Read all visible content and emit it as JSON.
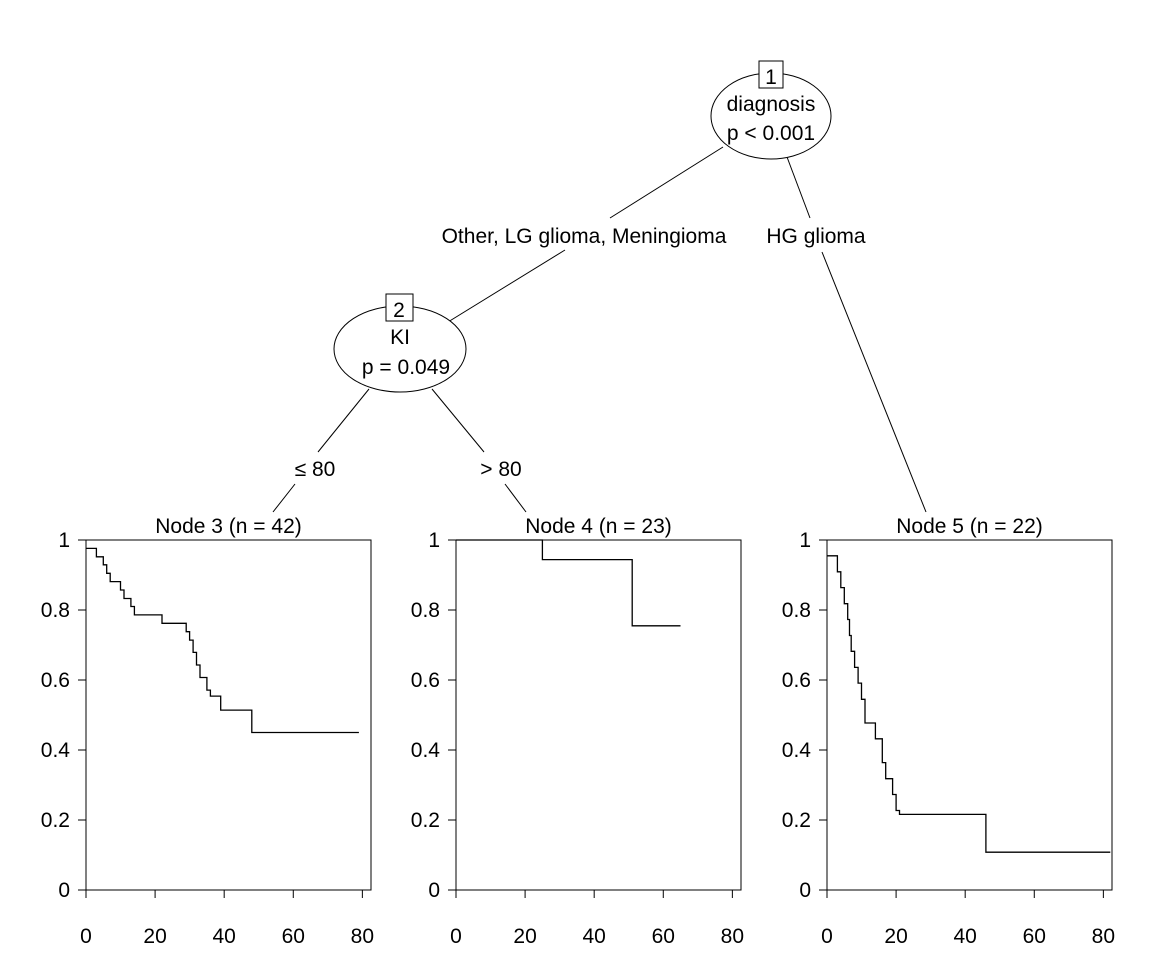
{
  "tree": {
    "inner_nodes": [
      {
        "id": "1",
        "variable": "diagnosis",
        "pvalue": "p < 0.001"
      },
      {
        "id": "2",
        "variable": "KI",
        "pvalue": "p = 0.049"
      }
    ],
    "edge_labels": {
      "left_of_1": "Other, LG glioma, Meningioma",
      "right_of_1": "HG glioma",
      "left_of_2": "≤ 80",
      "right_of_2": "> 80"
    }
  },
  "chart_data": [
    {
      "type": "line",
      "title": "Node 3 (n = 42)",
      "xlim": [
        0,
        80
      ],
      "ylim": [
        0,
        1
      ],
      "xticks": [
        "0",
        "20",
        "40",
        "60",
        "80"
      ],
      "yticks": [
        "0",
        "0.2",
        "0.4",
        "0.6",
        "0.8",
        "1"
      ],
      "x": [
        0,
        3,
        5,
        6,
        7,
        10,
        11,
        13,
        14,
        22,
        29,
        30,
        31,
        32,
        33,
        34,
        35,
        36,
        39,
        48,
        79
      ],
      "y": [
        0.976,
        0.952,
        0.929,
        0.905,
        0.881,
        0.857,
        0.833,
        0.81,
        0.786,
        0.762,
        0.738,
        0.714,
        0.679,
        0.643,
        0.607,
        0.607,
        0.571,
        0.554,
        0.514,
        0.45,
        0.45
      ]
    },
    {
      "type": "line",
      "title": "Node 4 (n = 23)",
      "xlim": [
        0,
        80
      ],
      "ylim": [
        0,
        1
      ],
      "xticks": [
        "0",
        "20",
        "40",
        "60",
        "80"
      ],
      "yticks": [
        "0",
        "0.2",
        "0.4",
        "0.6",
        "0.8",
        "1"
      ],
      "x": [
        0,
        25,
        51,
        65
      ],
      "y": [
        1.0,
        0.944,
        0.755,
        0.755
      ]
    },
    {
      "type": "line",
      "title": "Node 5 (n = 22)",
      "xlim": [
        0,
        80
      ],
      "ylim": [
        0,
        1
      ],
      "xticks": [
        "0",
        "20",
        "40",
        "60",
        "80"
      ],
      "yticks": [
        "0",
        "0.2",
        "0.4",
        "0.6",
        "0.8",
        "1"
      ],
      "x": [
        0,
        3,
        4,
        5,
        6,
        6.5,
        7,
        8,
        9,
        10,
        11,
        14,
        16,
        17,
        19,
        20,
        21,
        46,
        82
      ],
      "y": [
        0.955,
        0.909,
        0.864,
        0.818,
        0.773,
        0.727,
        0.682,
        0.636,
        0.591,
        0.545,
        0.477,
        0.432,
        0.364,
        0.318,
        0.273,
        0.227,
        0.216,
        0.108,
        0.108
      ]
    }
  ]
}
